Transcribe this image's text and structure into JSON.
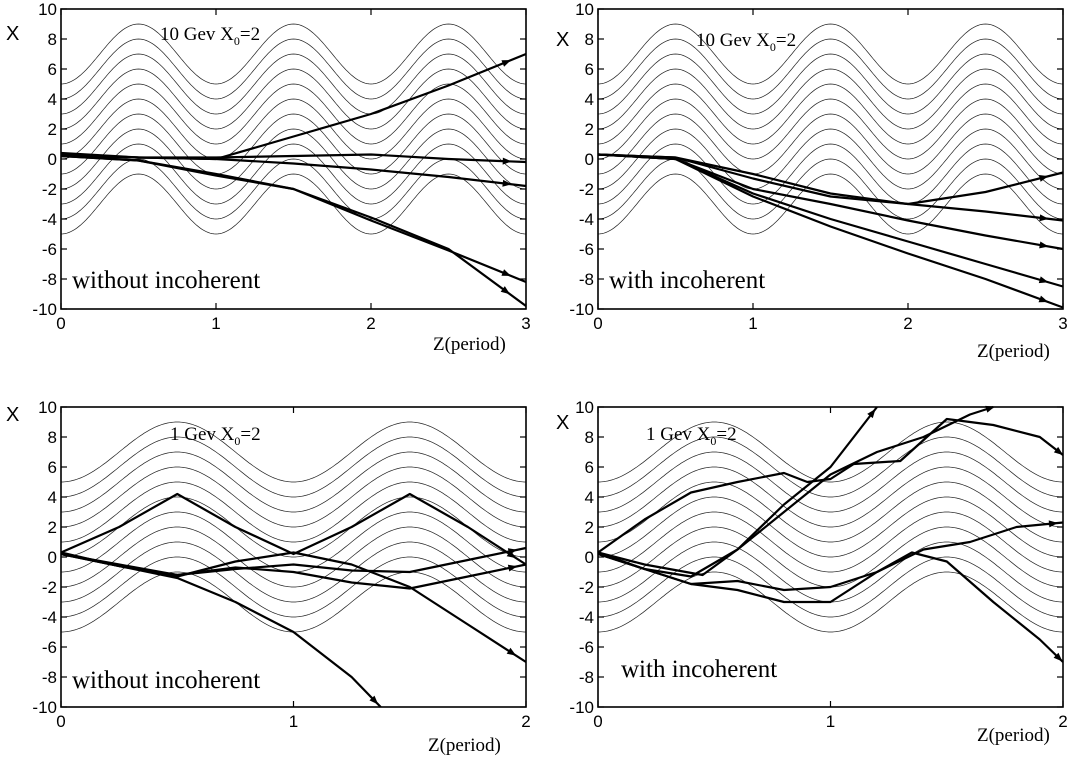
{
  "chart_data": [
    {
      "type": "line",
      "title": "10 Gev  X0=2",
      "title_main": "10 Gev  X",
      "title_sub": "0",
      "title_tail": "=2",
      "annotation": "without incoherent",
      "xlabel": "Z(period)",
      "ylabel": "X",
      "xlim": [
        0,
        3
      ],
      "ylim": [
        -10,
        10
      ],
      "xticks": [
        "0",
        "1",
        "2",
        "3"
      ],
      "yticks": [
        "-10",
        "-8",
        "-6",
        "-4",
        "-2",
        "0",
        "2",
        "4",
        "6",
        "8",
        "10"
      ],
      "background_curves": {
        "offsets": [
          -3,
          -2,
          -1,
          0,
          1,
          2,
          3,
          4,
          5,
          6,
          7
        ],
        "amplitude": 2,
        "wavelength": 1
      },
      "series": [
        {
          "x": [
            0,
            0.5,
            1.0,
            1.5,
            2.0,
            2.5,
            3.0
          ],
          "y": [
            0.4,
            0.1,
            0.0,
            1.5,
            3.0,
            4.9,
            7.0
          ]
        },
        {
          "x": [
            0,
            0.5,
            1.0,
            1.5,
            2.0,
            2.5,
            3.0
          ],
          "y": [
            0.3,
            0.1,
            0.0,
            -0.3,
            -0.7,
            -1.2,
            -1.8
          ]
        },
        {
          "x": [
            0,
            0.5,
            1.0,
            1.5,
            2.0,
            2.5,
            3.0
          ],
          "y": [
            0.2,
            0.1,
            0.1,
            0.2,
            0.3,
            0.0,
            -0.2
          ]
        },
        {
          "x": [
            0,
            0.5,
            1.0,
            1.5,
            2.0,
            2.5,
            3.0
          ],
          "y": [
            0.2,
            -0.1,
            -1.0,
            -2.0,
            -4.1,
            -6.1,
            -8.2
          ]
        },
        {
          "x": [
            0,
            0.5,
            1.0,
            1.5,
            2.0,
            2.5,
            3.0
          ],
          "y": [
            0.2,
            -0.1,
            -1.1,
            -2.0,
            -3.9,
            -6.0,
            -9.8
          ]
        }
      ]
    },
    {
      "type": "line",
      "title": "10 Gev  X0=2",
      "title_main": "10 Gev  X",
      "title_sub": "0",
      "title_tail": "=2",
      "annotation": "with incoherent",
      "xlabel": "Z(period)",
      "ylabel": "X",
      "xlim": [
        0,
        3
      ],
      "ylim": [
        -10,
        10
      ],
      "xticks": [
        "0",
        "1",
        "2",
        "3"
      ],
      "yticks": [
        "-10",
        "-8",
        "-6",
        "-4",
        "-2",
        "0",
        "2",
        "4",
        "6",
        "8",
        "10"
      ],
      "background_curves": {
        "offsets": [
          -3,
          -2,
          -1,
          0,
          1,
          2,
          3,
          4,
          5,
          6,
          7
        ],
        "amplitude": 2,
        "wavelength": 1
      },
      "series": [
        {
          "x": [
            0,
            0.5,
            1.0,
            1.5,
            2.0,
            2.5,
            3.0
          ],
          "y": [
            0.3,
            0.1,
            -1.0,
            -2.3,
            -3.0,
            -2.2,
            -0.9
          ]
        },
        {
          "x": [
            0,
            0.5,
            1.0,
            1.5,
            2.0,
            2.5,
            3.0
          ],
          "y": [
            0.3,
            0.1,
            -1.3,
            -2.5,
            -3.0,
            -3.5,
            -4.1
          ]
        },
        {
          "x": [
            0,
            0.5,
            1.0,
            1.5,
            2.0,
            2.5,
            3.0
          ],
          "y": [
            0.3,
            0.0,
            -2.0,
            -3.0,
            -4.1,
            -5.1,
            -6.0
          ]
        },
        {
          "x": [
            0,
            0.5,
            1.0,
            1.5,
            2.0,
            2.5,
            3.0
          ],
          "y": [
            0.3,
            0.0,
            -2.5,
            -4.5,
            -6.3,
            -8.0,
            -9.9
          ]
        },
        {
          "x": [
            0,
            0.5,
            1.0,
            1.5,
            2.0,
            2.5,
            3.0
          ],
          "y": [
            0.3,
            0.0,
            -2.3,
            -4.0,
            -5.5,
            -7.0,
            -8.5
          ]
        }
      ]
    },
    {
      "type": "line",
      "title": "1 Gev  X0=2",
      "title_main": "1 Gev  X",
      "title_sub": "0",
      "title_tail": "=2",
      "annotation": "without incoherent",
      "xlabel": "Z(period)",
      "ylabel": "X",
      "xlim": [
        0,
        2
      ],
      "ylim": [
        -10,
        10
      ],
      "xticks": [
        "0",
        "1",
        "2"
      ],
      "yticks": [
        "-10",
        "-8",
        "-6",
        "-4",
        "-2",
        "0",
        "2",
        "4",
        "6",
        "8",
        "10"
      ],
      "background_curves": {
        "offsets": [
          -3,
          -2,
          -1,
          0,
          1,
          2,
          3,
          4,
          5,
          6,
          7
        ],
        "amplitude": 2,
        "wavelength": 1
      },
      "series": [
        {
          "x": [
            0,
            0.25,
            0.5,
            0.75,
            1.0,
            1.25,
            1.5,
            1.75,
            2.0
          ],
          "y": [
            0.3,
            2.0,
            4.2,
            2.0,
            0.2,
            2.0,
            4.2,
            2.0,
            -0.5
          ]
        },
        {
          "x": [
            0,
            0.25,
            0.5,
            0.75,
            1.0,
            1.25,
            1.5,
            1.75,
            2.0
          ],
          "y": [
            0.3,
            -0.6,
            -1.3,
            -0.3,
            0.3,
            -0.5,
            -2.0,
            -4.5,
            -7.0
          ]
        },
        {
          "x": [
            0,
            0.25,
            0.5,
            0.75,
            1.0,
            1.25,
            1.5,
            1.75,
            2.0
          ],
          "y": [
            0.2,
            -0.6,
            -1.2,
            -0.8,
            -0.5,
            -0.9,
            -1.0,
            -0.2,
            0.6
          ]
        },
        {
          "x": [
            0,
            0.25,
            0.5,
            0.75,
            1.0,
            1.25,
            1.5,
            1.75,
            2.0
          ],
          "y": [
            0.2,
            -0.5,
            -1.2,
            -0.7,
            -1.0,
            -1.7,
            -2.1,
            -1.3,
            -0.5
          ]
        },
        {
          "x": [
            0,
            0.25,
            0.5,
            0.75,
            1.0,
            1.25,
            1.375
          ],
          "y": [
            0.2,
            -0.6,
            -1.4,
            -3.0,
            -5.0,
            -8.0,
            -10.0
          ]
        }
      ]
    },
    {
      "type": "line",
      "title": "1 Gev  X0=2",
      "title_main": "1 Gev  X",
      "title_sub": "0",
      "title_tail": "=2",
      "annotation": "with incoherent",
      "xlabel": "Z(period)",
      "ylabel": "X",
      "xlim": [
        0,
        2
      ],
      "ylim": [
        -10,
        10
      ],
      "xticks": [
        "0",
        "1",
        "2"
      ],
      "yticks": [
        "-10",
        "-8",
        "-6",
        "-4",
        "-2",
        "0",
        "2",
        "4",
        "6",
        "8",
        "10"
      ],
      "background_curves": {
        "offsets": [
          -3,
          -2,
          -1,
          0,
          1,
          2,
          3,
          4,
          5,
          6,
          7
        ],
        "amplitude": 2,
        "wavelength": 1
      },
      "series": [
        {
          "x": [
            0,
            0.2,
            0.4,
            0.6,
            0.8,
            0.9,
            1.0,
            1.1,
            1.3,
            1.5,
            1.7,
            1.9,
            2.0
          ],
          "y": [
            0.3,
            2.5,
            4.3,
            5.0,
            5.6,
            5.0,
            5.2,
            6.2,
            6.4,
            9.2,
            8.8,
            8.0,
            6.8
          ]
        },
        {
          "x": [
            0,
            0.2,
            0.45,
            0.6,
            0.8,
            1.0,
            1.2,
            1.4,
            1.6,
            1.7
          ],
          "y": [
            0.3,
            -0.5,
            -1.2,
            0.5,
            3.0,
            5.5,
            7.0,
            8.0,
            9.5,
            10.0
          ]
        },
        {
          "x": [
            0,
            0.2,
            0.4,
            0.6,
            0.8,
            1.0,
            1.1,
            1.2
          ],
          "y": [
            0.3,
            -0.8,
            -1.3,
            0.5,
            3.5,
            6.0,
            8.0,
            10.0
          ]
        },
        {
          "x": [
            0,
            0.2,
            0.4,
            0.6,
            0.8,
            1.0,
            1.2,
            1.4,
            1.6,
            1.8,
            2.0
          ],
          "y": [
            0.2,
            -0.8,
            -1.8,
            -2.2,
            -3.0,
            -3.0,
            -1.0,
            0.5,
            1.0,
            2.0,
            2.3
          ]
        },
        {
          "x": [
            0,
            0.2,
            0.4,
            0.6,
            0.8,
            1.0,
            1.2,
            1.35,
            1.5,
            1.7,
            1.9,
            2.0
          ],
          "y": [
            0.2,
            -0.8,
            -1.8,
            -1.6,
            -2.2,
            -2.0,
            -1.0,
            0.3,
            -0.3,
            -3.0,
            -5.5,
            -7.0
          ]
        }
      ]
    }
  ]
}
